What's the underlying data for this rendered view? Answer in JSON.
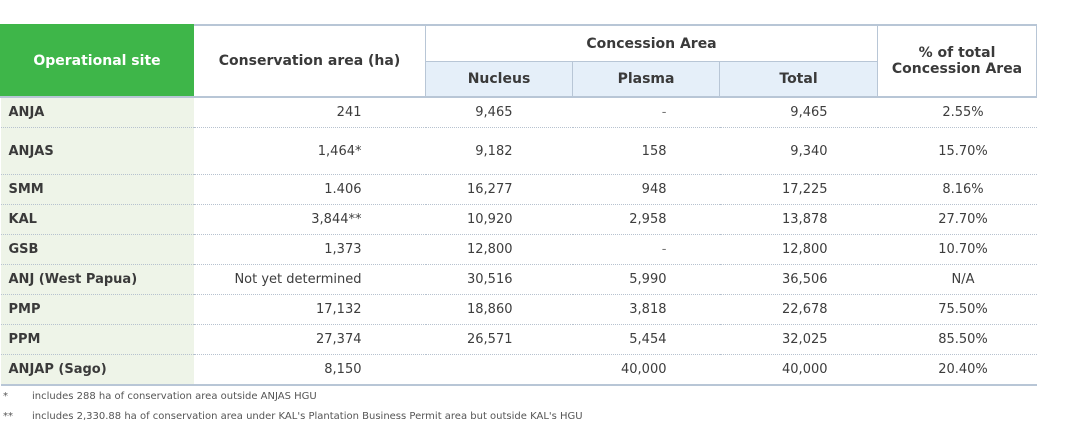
{
  "headers": {
    "site": "Operational site",
    "conservation": "Conservation area (ha)",
    "concession": "Concession Area",
    "nucleus": "Nucleus",
    "plasma": "Plasma",
    "total": "Total",
    "pct": "% of total Concession Area"
  },
  "rows": [
    {
      "site": "ANJA",
      "conservation": "241",
      "nucleus": "9,465",
      "plasma": "-",
      "total": "9,465",
      "pct": "2.55%"
    },
    {
      "site": "ANJAS",
      "conservation": "1,464*",
      "nucleus": "9,182",
      "plasma": "158",
      "total": "9,340",
      "pct": "15.70%"
    },
    {
      "site": "SMM",
      "conservation": "1.406",
      "nucleus": "16,277",
      "plasma": "948",
      "total": "17,225",
      "pct": "8.16%"
    },
    {
      "site": "KAL",
      "conservation": "3,844**",
      "nucleus": "10,920",
      "plasma": "2,958",
      "total": "13,878",
      "pct": "27.70%"
    },
    {
      "site": "GSB",
      "conservation": "1,373",
      "nucleus": "12,800",
      "plasma": "-",
      "total": "12,800",
      "pct": "10.70%"
    },
    {
      "site": "ANJ (West Papua)",
      "conservation": "Not yet determined",
      "nucleus": "30,516",
      "plasma": "5,990",
      "total": "36,506",
      "pct": "N/A"
    },
    {
      "site": "PMP",
      "conservation": "17,132",
      "nucleus": "18,860",
      "plasma": "3,818",
      "total": "22,678",
      "pct": "75.50%"
    },
    {
      "site": "PPM",
      "conservation": "27,374",
      "nucleus": "26,571",
      "plasma": "5,454",
      "total": "32,025",
      "pct": "85.50%"
    },
    {
      "site": "ANJAP (Sago)",
      "conservation": "8,150",
      "nucleus": "",
      "plasma": "40,000",
      "total": "40,000",
      "pct": "20.40%"
    }
  ],
  "footnotes": [
    {
      "mark": "*",
      "text": "includes 288 ha of conservation area outside ANJAS HGU"
    },
    {
      "mark": "**",
      "text": "includes 2,330.88 ha of conservation area under KAL's Plantation Business Permit area but outside KAL's HGU"
    }
  ]
}
